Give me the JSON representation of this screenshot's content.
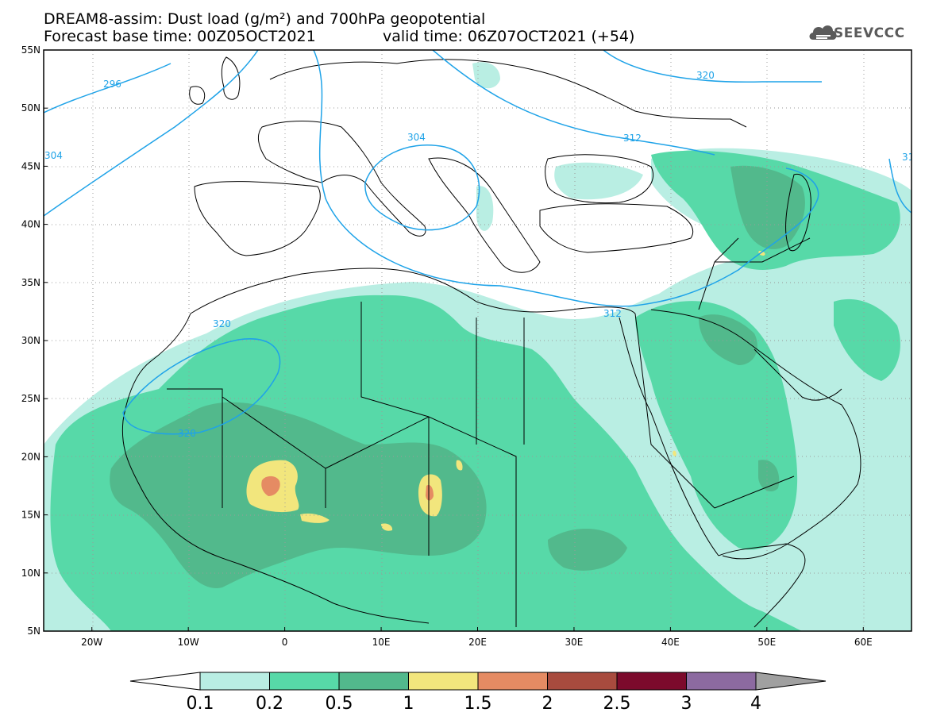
{
  "title": {
    "line1": "DREAM8-assim: Dust load (g/m²) and 700hPa geopotential",
    "line2_base": "Forecast base time: 00Z05OCT2021",
    "line2_valid": "valid time: 06Z07OCT2021 (+54)"
  },
  "logo": {
    "text": "SEEVCCC",
    "icon": "cloud-icon"
  },
  "map": {
    "lon_range": [
      -25,
      65
    ],
    "lat_range": [
      5,
      55
    ],
    "lon_ticks": [
      {
        "value": -20,
        "label": "20W"
      },
      {
        "value": -10,
        "label": "10W"
      },
      {
        "value": 0,
        "label": "0"
      },
      {
        "value": 10,
        "label": "10E"
      },
      {
        "value": 20,
        "label": "20E"
      },
      {
        "value": 30,
        "label": "30E"
      },
      {
        "value": 40,
        "label": "40E"
      },
      {
        "value": 50,
        "label": "50E"
      },
      {
        "value": 60,
        "label": "60E"
      }
    ],
    "lat_ticks": [
      {
        "value": 55,
        "label": "55N"
      },
      {
        "value": 50,
        "label": "50N"
      },
      {
        "value": 45,
        "label": "45N"
      },
      {
        "value": 40,
        "label": "40N"
      },
      {
        "value": 35,
        "label": "35N"
      },
      {
        "value": 30,
        "label": "30N"
      },
      {
        "value": 25,
        "label": "25N"
      },
      {
        "value": 20,
        "label": "20N"
      },
      {
        "value": 15,
        "label": "15N"
      },
      {
        "value": 10,
        "label": "10N"
      },
      {
        "value": 5,
        "label": "5N"
      }
    ],
    "grid": true,
    "contour_labels": [
      "296",
      "304",
      "304",
      "312",
      "312",
      "320",
      "320",
      "320",
      "31"
    ]
  },
  "colorbar": {
    "labels": [
      "0.1",
      "0.2",
      "0.5",
      "1",
      "1.5",
      "2",
      "2.5",
      "3",
      "4"
    ],
    "colors": [
      "#b9eee3",
      "#57d9a8",
      "#52b98c",
      "#f2e67d",
      "#e58b63",
      "#a84b3e",
      "#7c0a2c",
      "#8c6aa0",
      "#a0a0a0"
    ],
    "low_arrow_color": "#ffffff",
    "high_arrow_color": "#a0a0a0"
  },
  "colors": {
    "contour": "#1fa3e8",
    "coast": "#000000",
    "dust_light": "#b9eee3",
    "dust_mid": "#57d9a8",
    "dust_dark": "#52b98c",
    "dust_yellow": "#f2e67d",
    "dust_orange": "#e58b63"
  }
}
